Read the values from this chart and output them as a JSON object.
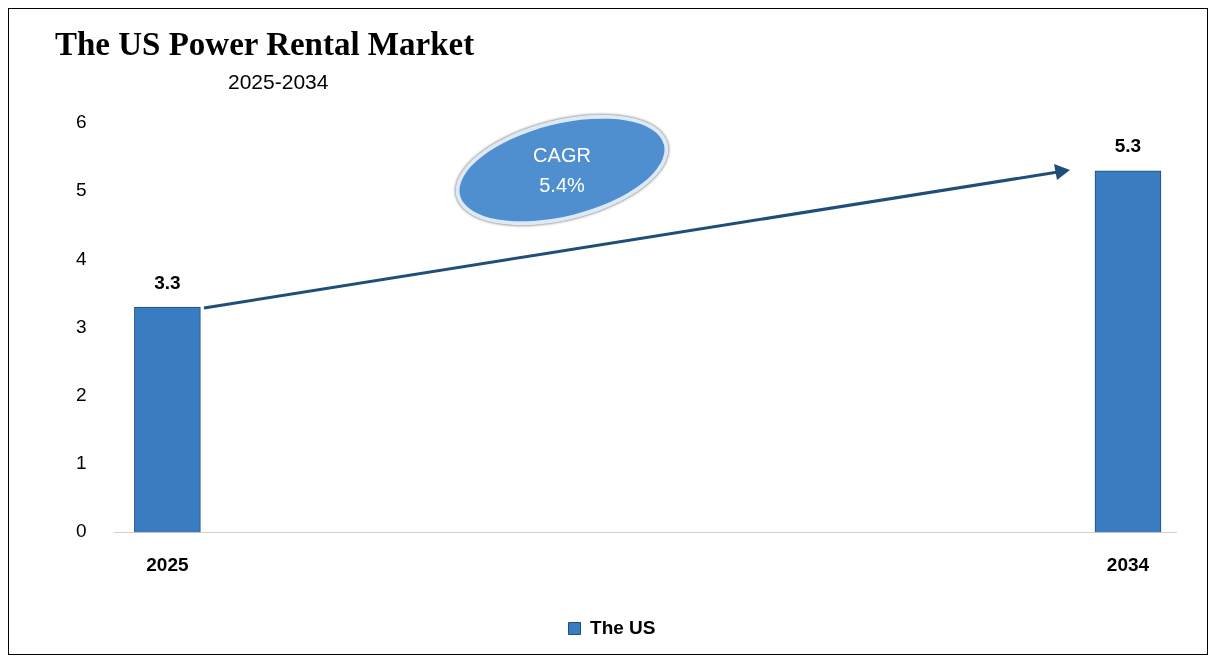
{
  "chart_data": {
    "type": "bar",
    "title": "The US Power Rental Market",
    "subtitle": "2025-2034",
    "categories": [
      "2025",
      "2034"
    ],
    "series": [
      {
        "name": "The US",
        "color": "#3a7cc2",
        "values": [
          3.3,
          5.3
        ]
      }
    ],
    "ylim": [
      0,
      6
    ],
    "yticks": [
      0,
      1,
      2,
      3,
      4,
      5,
      6
    ],
    "grid": false,
    "legend": "bottom",
    "data_labels": true,
    "annotations": [
      "CAGR 5.4%"
    ]
  }
}
